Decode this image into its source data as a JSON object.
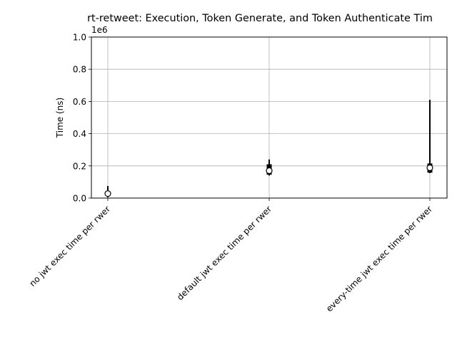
{
  "chart_data": {
    "type": "boxplot",
    "title": "rt-retweet: Execution, Token Generate, and Token Authenticate Tim",
    "xlabel": "",
    "ylabel": "Time (ns)",
    "y_offset_label": "1e6",
    "ylim": [
      0,
      1000000
    ],
    "y_ticks": [
      0,
      200000,
      400000,
      600000,
      800000,
      1000000
    ],
    "y_tick_labels": [
      "0.0",
      "0.2",
      "0.4",
      "0.6",
      "0.8",
      "1.0"
    ],
    "grid": true,
    "categories": [
      "no jwt exec time per rwer",
      "default jwt exec time per rwer",
      "every-time jwt exec time per rwer"
    ],
    "series": [
      {
        "whisker_low": [
          5000,
          140000,
          155000
        ],
        "q1": [
          15000,
          145000,
          158000
        ],
        "q3": [
          40000,
          210000,
          215000
        ],
        "whisker_high": [
          75000,
          240000,
          610000
        ],
        "mean": [
          28000,
          170000,
          188000
        ]
      }
    ],
    "colors": {
      "box": "#000000",
      "grid": "#b0b0b0",
      "mean_marker_fill": "#ffffff"
    }
  }
}
